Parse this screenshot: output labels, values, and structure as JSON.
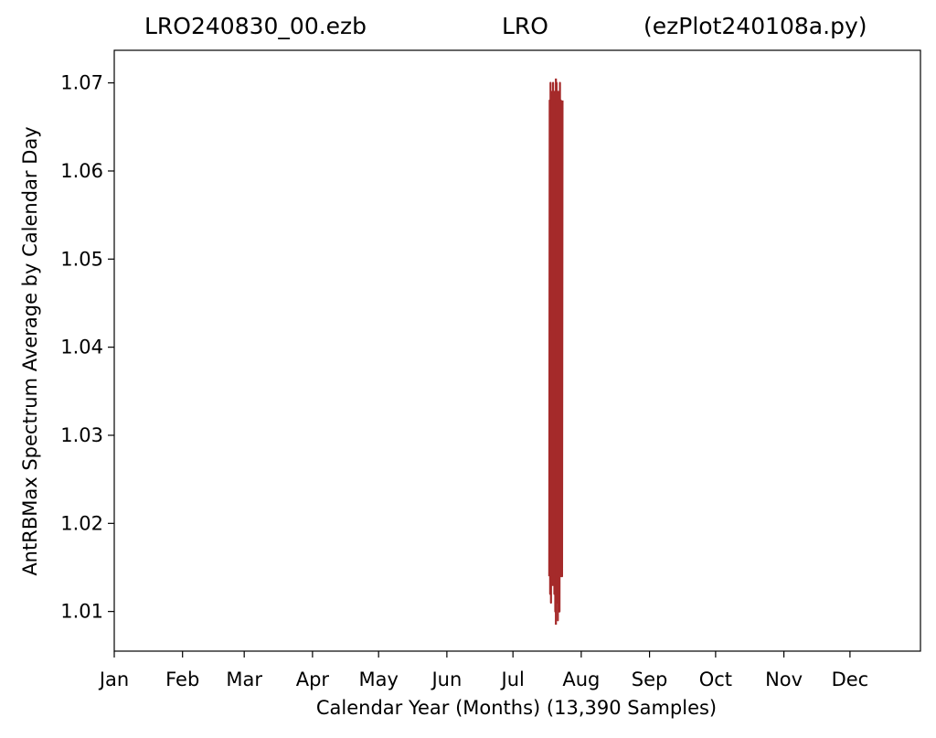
{
  "chart_data": {
    "type": "line",
    "title": {
      "left": "LRO240830_00.ezb",
      "center": "LRO",
      "right": "(ezPlot240108a.py)"
    },
    "xlabel": "Calendar Year (Months) (13,390 Samples)",
    "ylabel": "AntRBMax Spectrum Average by Calendar Day",
    "x_ticks": [
      "Jan",
      "Feb",
      "Mar",
      "Apr",
      "May",
      "Jun",
      "Jul",
      "Aug",
      "Sep",
      "Oct",
      "Nov",
      "Dec"
    ],
    "x_tick_days": [
      0,
      31,
      59,
      90,
      120,
      151,
      181,
      212,
      243,
      273,
      304,
      334
    ],
    "xlim": [
      0,
      366
    ],
    "y_ticks": [
      "1.01",
      "1.02",
      "1.03",
      "1.04",
      "1.05",
      "1.06",
      "1.07"
    ],
    "ylim": [
      1.0055,
      1.0737
    ],
    "grid": false,
    "series": [
      {
        "color": "#a52a2a",
        "x_range_days": [
          197.5,
          203.5
        ],
        "y_min": 1.0085,
        "y_max": 1.0705,
        "values": [
          1.014,
          1.068,
          1.012,
          1.07,
          1.011,
          1.069,
          1.016,
          1.066,
          1.013,
          1.07,
          1.015,
          1.068,
          1.012,
          1.069,
          1.01,
          1.064,
          1.017,
          1.07,
          1.011,
          1.067,
          1.009,
          1.069,
          1.012,
          1.066,
          1.01,
          1.07,
          1.014,
          1.068,
          1.021,
          1.062,
          1.014,
          1.068
        ]
      }
    ]
  }
}
